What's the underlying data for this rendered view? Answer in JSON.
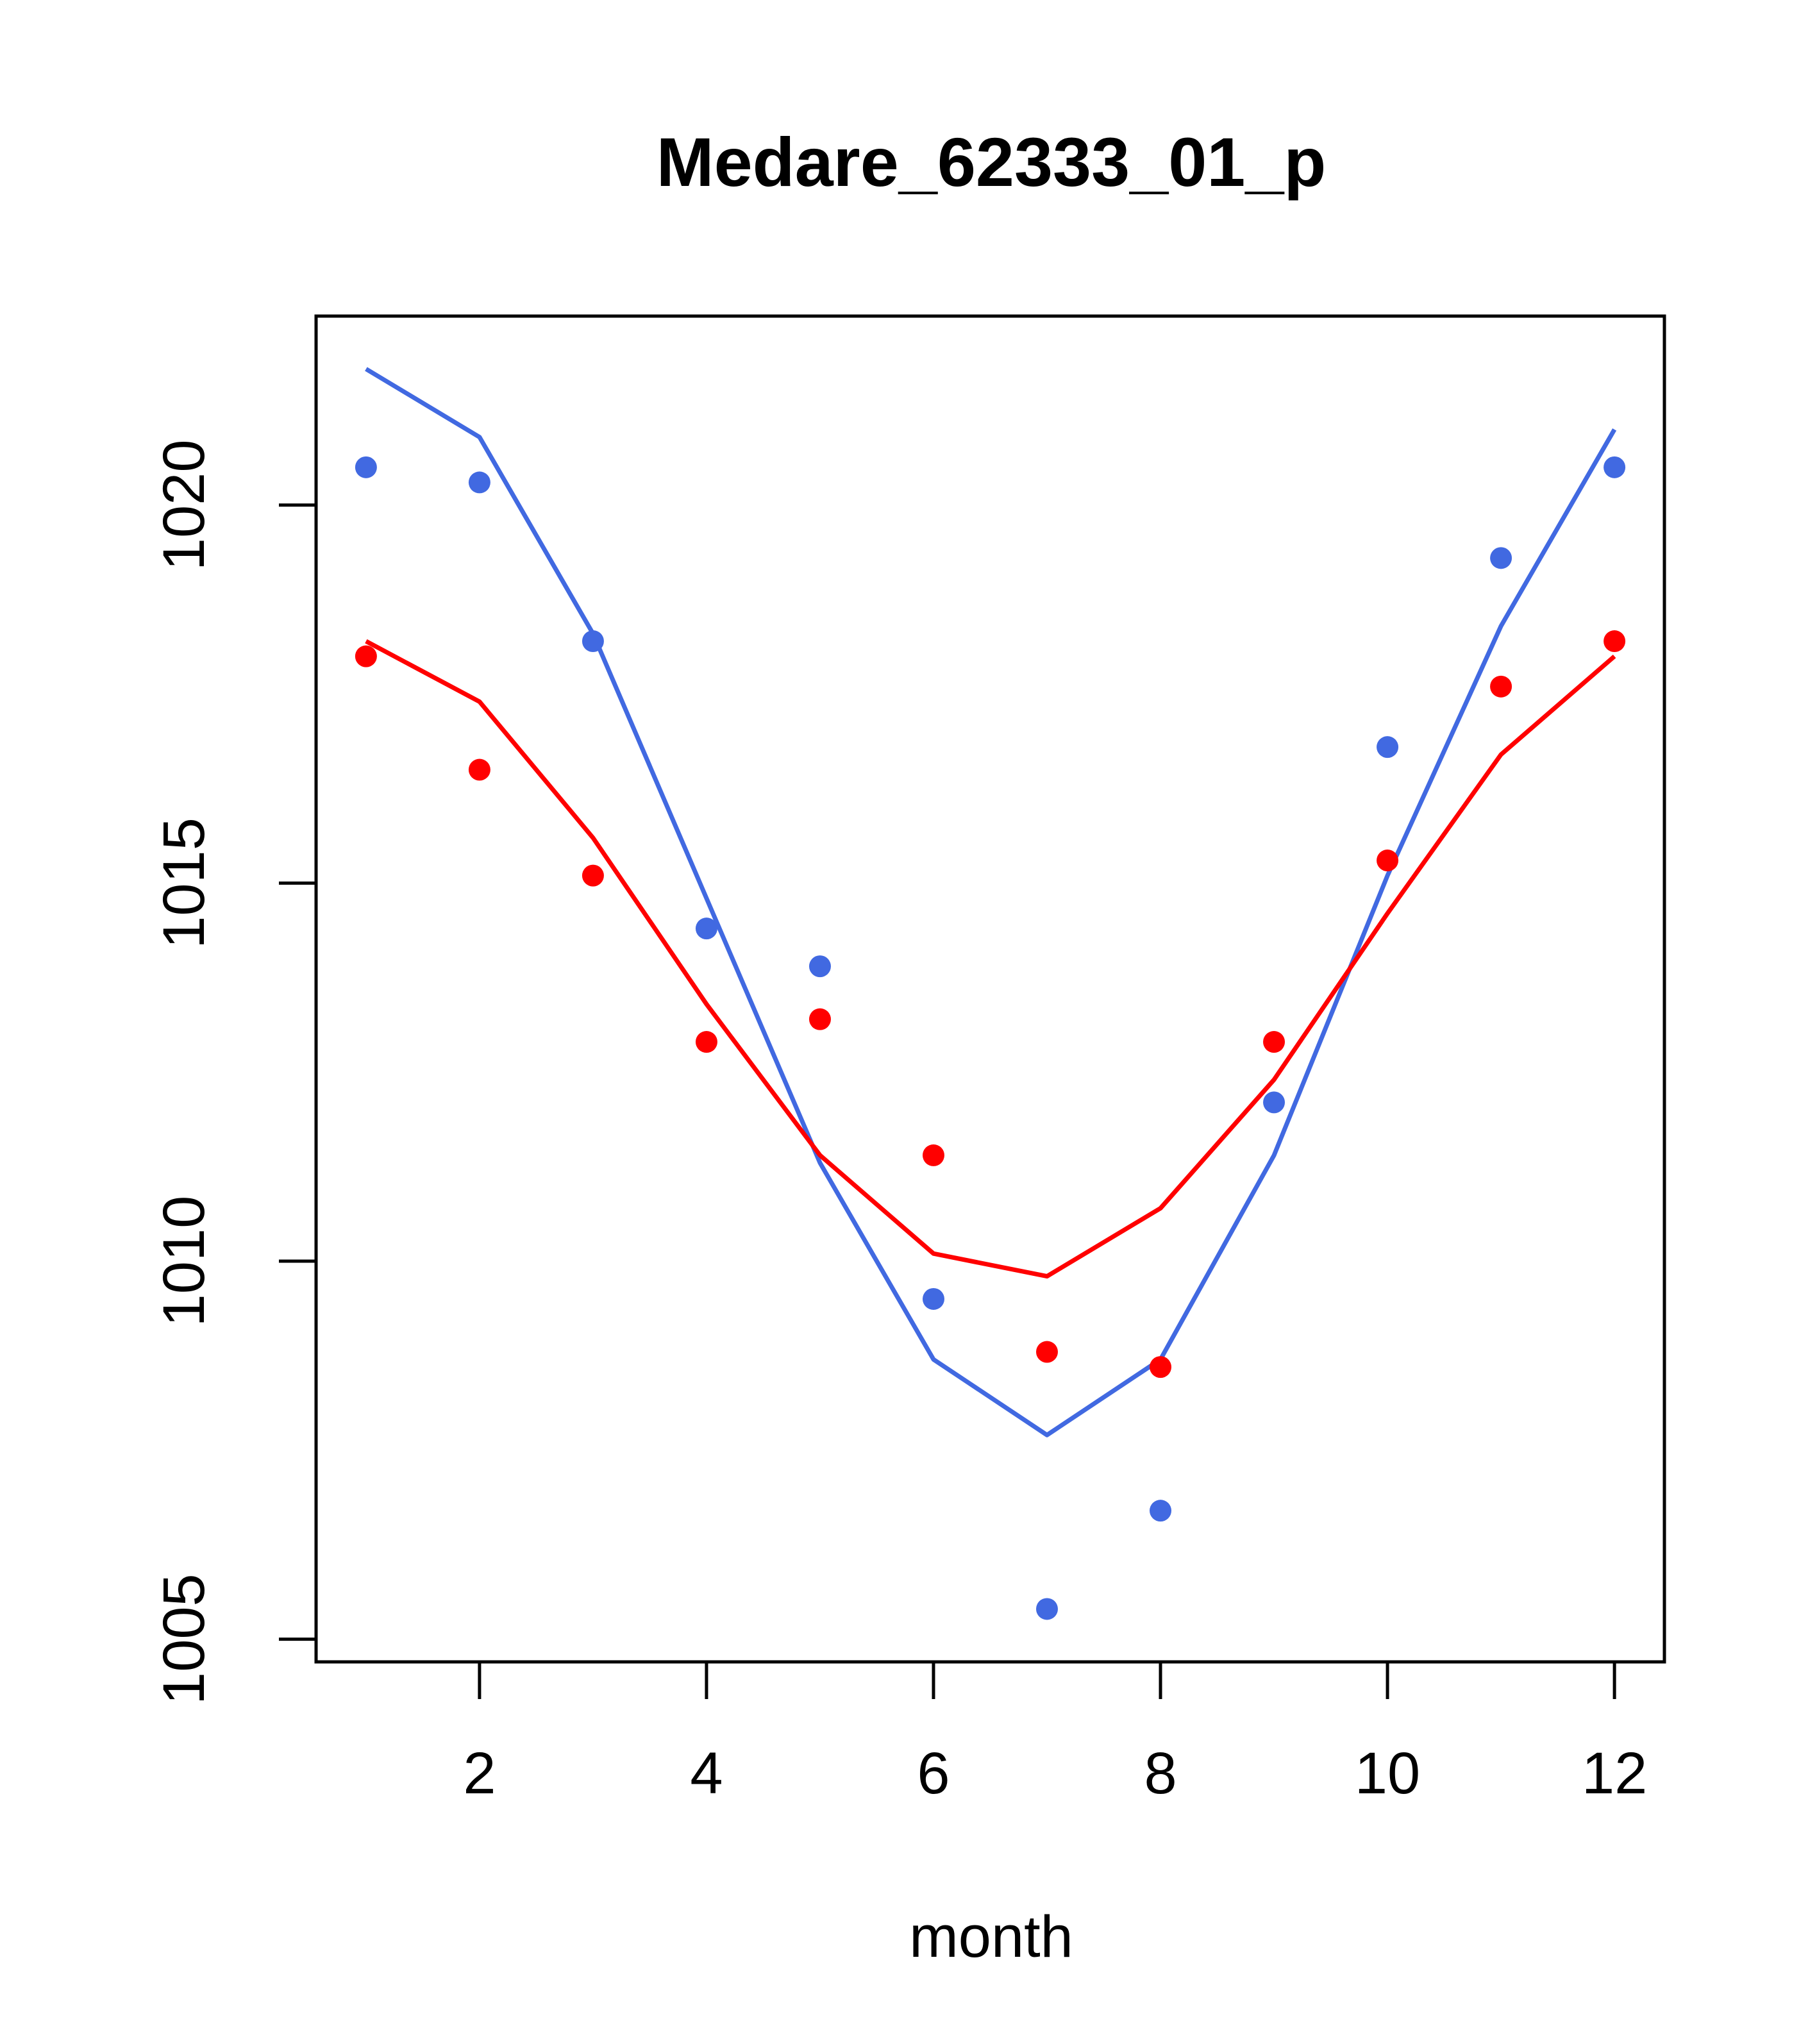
{
  "chart_data": {
    "type": "line",
    "title": "Medare_62333_01_p",
    "xlabel": "month",
    "ylabel": "",
    "xlim": [
      0.56,
      12.44
    ],
    "ylim": [
      1004.7,
      1022.5
    ],
    "x_ticks": [
      2,
      4,
      6,
      8,
      10,
      12
    ],
    "y_ticks": [
      1005,
      1010,
      1015,
      1020
    ],
    "grid": false,
    "x": [
      1,
      2,
      3,
      4,
      5,
      6,
      7,
      8,
      9,
      10,
      11,
      12
    ],
    "series": [
      {
        "color": "#4169E1",
        "points": [
          1020.5,
          1020.3,
          1018.2,
          1014.4,
          1013.9,
          1009.5,
          1005.4,
          1006.7,
          1012.1,
          1016.8,
          1019.3,
          1020.5
        ],
        "line": [
          1021.8,
          1020.9,
          1018.3,
          1014.8,
          1011.3,
          1008.7,
          1007.7,
          1008.7,
          1011.4,
          1015.1,
          1018.4,
          1021.0
        ]
      },
      {
        "color": "#FF0000",
        "points": [
          1018.0,
          1016.5,
          1015.1,
          1012.9,
          1013.2,
          1011.4,
          1008.8,
          1008.6,
          1012.9,
          1015.3,
          1017.6,
          1018.2
        ],
        "line": [
          1018.2,
          1017.4,
          1015.6,
          1013.4,
          1011.4,
          1010.1,
          1009.8,
          1010.7,
          1012.4,
          1014.6,
          1016.7,
          1018.0
        ]
      }
    ]
  }
}
